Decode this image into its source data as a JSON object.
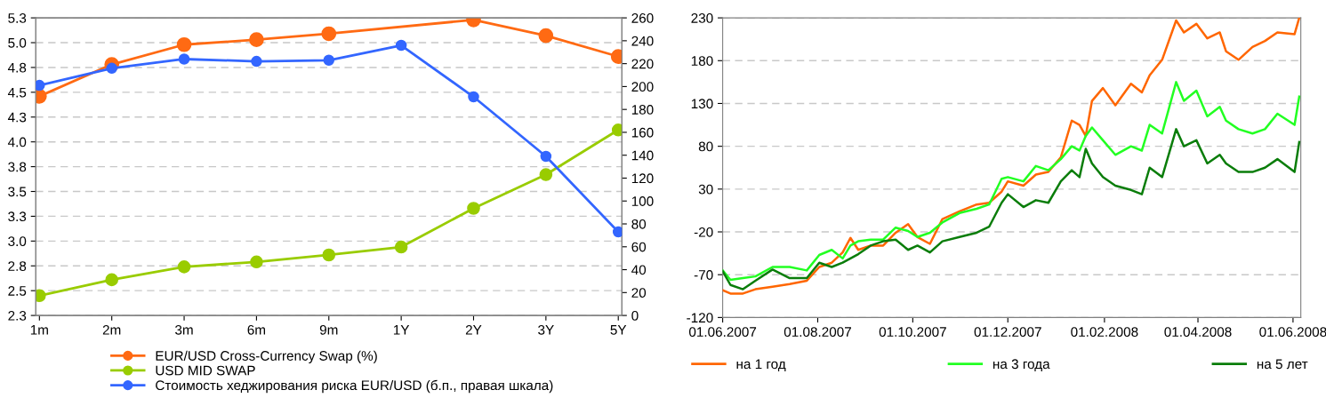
{
  "chart_data": [
    {
      "type": "line",
      "categories": [
        "1m",
        "2m",
        "3m",
        "6m",
        "9m",
        "1Y",
        "2Y",
        "3Y",
        "5Y"
      ],
      "ylim": [
        2.25,
        5.25
      ],
      "yticks": [
        {
          "value": 2.25,
          "label": "2.3"
        },
        {
          "value": 2.5,
          "label": "2.5"
        },
        {
          "value": 2.75,
          "label": "2.8"
        },
        {
          "value": 3.0,
          "label": "3.0"
        },
        {
          "value": 3.25,
          "label": "3.3"
        },
        {
          "value": 3.5,
          "label": "3.5"
        },
        {
          "value": 3.75,
          "label": "3.8"
        },
        {
          "value": 4.0,
          "label": "4.0"
        },
        {
          "value": 4.25,
          "label": "4.3"
        },
        {
          "value": 4.5,
          "label": "4.5"
        },
        {
          "value": 4.75,
          "label": "4.8"
        },
        {
          "value": 5.0,
          "label": "5.0"
        },
        {
          "value": 5.25,
          "label": "5.3"
        }
      ],
      "y2lim": [
        0,
        260
      ],
      "y2ticks": [
        0,
        20,
        40,
        60,
        80,
        100,
        120,
        140,
        160,
        180,
        200,
        220,
        240,
        260
      ],
      "grid": "y",
      "legend": "bottom",
      "marker": "circle",
      "line_style": "solid",
      "series": [
        {
          "name": "EUR/USD Cross-Currency Swap (%)",
          "color": "#ff6a13",
          "values": [
            4.46,
            4.78,
            4.98,
            5.03,
            5.09,
            null,
            5.23,
            5.07,
            4.86
          ]
        },
        {
          "name": "USD MID SWAP",
          "color": "#99cc00",
          "values": [
            2.45,
            2.61,
            2.74,
            2.79,
            2.86,
            2.94,
            3.33,
            3.67,
            4.12
          ]
        },
        {
          "name": "Стоимость хеджирования риска EUR/USD (б.п., правая шкала)",
          "color": "#3366ff",
          "axis": "y2",
          "values": [
            201,
            216,
            224,
            222,
            223,
            236,
            191,
            139,
            73
          ]
        }
      ]
    },
    {
      "type": "line",
      "x": [
        "2007-06-01",
        "2007-06-06",
        "2007-06-14",
        "2007-06-22",
        "2007-07-03",
        "2007-07-14",
        "2007-07-25",
        "2007-08-02",
        "2007-08-10",
        "2007-08-17",
        "2007-08-22",
        "2007-08-27",
        "2007-09-04",
        "2007-09-12",
        "2007-09-20",
        "2007-09-28",
        "2007-10-04",
        "2007-10-12",
        "2007-10-20",
        "2007-10-31",
        "2007-11-11",
        "2007-11-19",
        "2007-11-27",
        "2007-12-01",
        "2007-12-11",
        "2007-12-19",
        "2007-12-27",
        "2008-01-04",
        "2008-01-11",
        "2008-01-16",
        "2008-01-20",
        "2008-01-24",
        "2008-01-31",
        "2008-02-08",
        "2008-02-18",
        "2008-02-25",
        "2008-03-01",
        "2008-03-09",
        "2008-03-18",
        "2008-03-23",
        "2008-03-31",
        "2008-04-07",
        "2008-04-15",
        "2008-04-19",
        "2008-04-27",
        "2008-05-06",
        "2008-05-14",
        "2008-05-22",
        "2008-06-02",
        "2008-06-05"
      ],
      "xlim": [
        "2007-06-01",
        "2008-06-06"
      ],
      "xticks": [
        {
          "value": "2007-06-01",
          "label": "01.06.2007"
        },
        {
          "value": "2007-08-01",
          "label": "01.08.2007"
        },
        {
          "value": "2007-10-01",
          "label": "01.10.2007"
        },
        {
          "value": "2007-12-01",
          "label": "01.12.2007"
        },
        {
          "value": "2008-02-01",
          "label": "01.02.2008"
        },
        {
          "value": "2008-04-01",
          "label": "01.04.2008"
        },
        {
          "value": "2008-06-01",
          "label": "01.06.2008"
        }
      ],
      "ylim": [
        -120,
        230
      ],
      "yticks": [
        -120,
        -70,
        -20,
        30,
        80,
        130,
        180,
        230
      ],
      "grid": "y",
      "legend": "bottom",
      "line_style": "solid",
      "series": [
        {
          "name": "на 1 год",
          "color": "#ff6600",
          "values": [
            -88,
            -92,
            -92,
            -87,
            -84,
            -81,
            -77,
            -61,
            -56,
            -44,
            -27,
            -41,
            -36,
            -36,
            -21,
            -11,
            -26,
            -34,
            -5,
            4,
            12,
            14,
            27,
            39,
            34,
            47,
            50,
            67,
            110,
            105,
            92,
            133,
            148,
            128,
            153,
            143,
            163,
            181,
            227,
            213,
            223,
            206,
            213,
            191,
            181,
            196,
            203,
            213,
            211,
            230
          ]
        },
        {
          "name": "на 3 года",
          "color": "#22ff22",
          "values": [
            -65,
            -76,
            -74,
            -72,
            -61,
            -61,
            -65,
            -47,
            -41,
            -51,
            -36,
            -31,
            -29,
            -29,
            -15,
            -19,
            -26,
            -21,
            -9,
            2,
            7,
            12,
            42,
            44,
            39,
            57,
            52,
            65,
            80,
            75,
            92,
            102,
            87,
            70,
            80,
            75,
            105,
            95,
            155,
            133,
            145,
            115,
            126,
            110,
            100,
            95,
            100,
            118,
            105,
            138
          ]
        },
        {
          "name": "на 5 лет",
          "color": "#0a7d0a",
          "values": [
            -66,
            -82,
            -87,
            -77,
            -64,
            -74,
            -74,
            -56,
            -61,
            -56,
            -51,
            -46,
            -36,
            -31,
            -29,
            -41,
            -36,
            -44,
            -31,
            -26,
            -21,
            -14,
            14,
            24,
            9,
            17,
            14,
            39,
            52,
            44,
            77,
            60,
            44,
            34,
            29,
            24,
            55,
            44,
            100,
            80,
            87,
            60,
            70,
            60,
            50,
            50,
            55,
            65,
            50,
            85
          ]
        }
      ]
    }
  ]
}
